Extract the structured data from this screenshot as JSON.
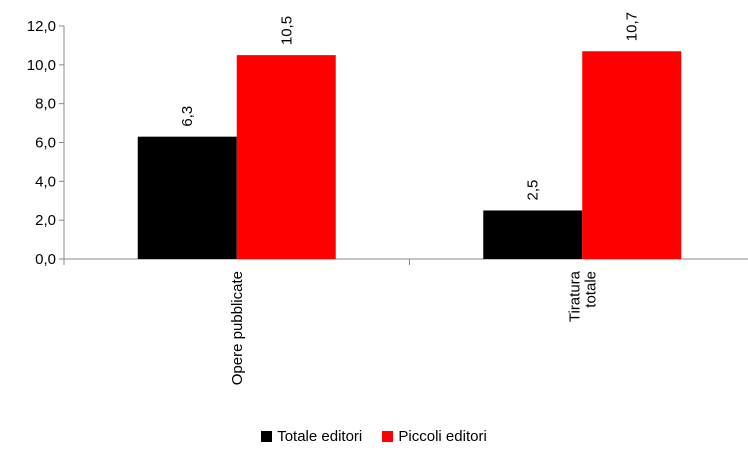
{
  "chart_data": {
    "type": "bar",
    "categories": [
      [
        "Opere pubblicate"
      ],
      [
        "Tiratura",
        "totale"
      ]
    ],
    "series": [
      {
        "name": "Totale editori",
        "values": [
          6.3,
          2.5
        ],
        "labels": [
          "6,3",
          "2,5"
        ],
        "color": "#000000"
      },
      {
        "name": "Piccoli editori",
        "values": [
          10.5,
          10.7
        ],
        "labels": [
          "10,5",
          "10,7"
        ],
        "color": "#ff0000"
      }
    ],
    "ylim": [
      0,
      12
    ],
    "yticks": [
      0,
      2,
      4,
      6,
      8,
      10,
      12
    ],
    "ytick_labels": [
      "0,0",
      "2,0",
      "4,0",
      "6,0",
      "8,0",
      "10,0",
      "12,0"
    ],
    "grid": false,
    "legend_position": "bottom"
  }
}
